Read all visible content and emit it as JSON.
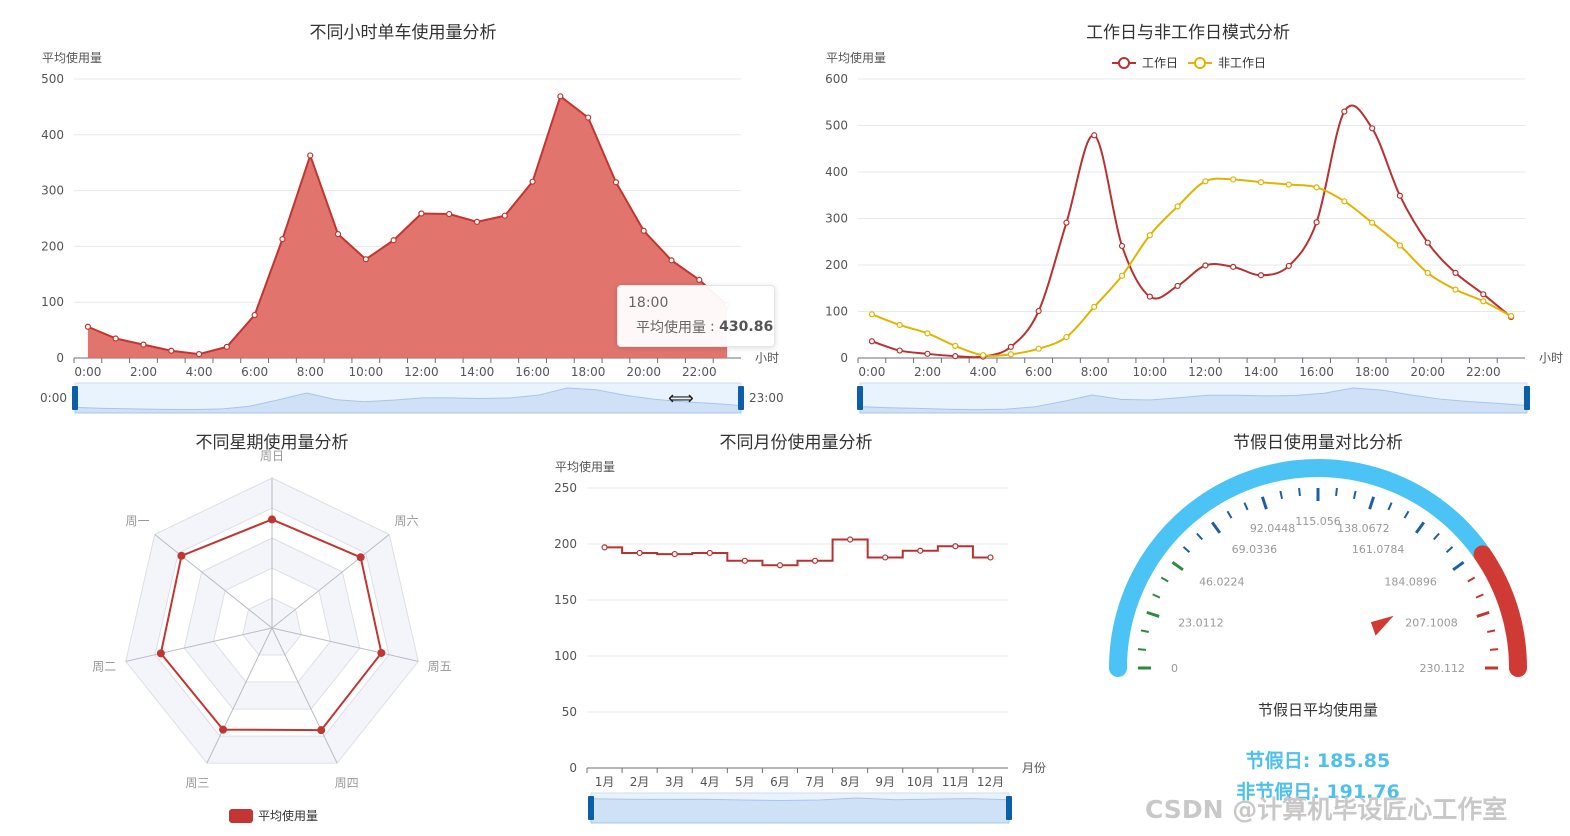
{
  "watermark": "CSDN @计算机毕设匠心工作室",
  "chart_data": [
    {
      "id": "hourly",
      "type": "area",
      "title": "不同小时单车使用量分析",
      "ylabel": "平均使用量",
      "xlabel": "小时",
      "ylim": [
        0,
        500
      ],
      "yticks": [
        0,
        100,
        200,
        300,
        400,
        500
      ],
      "x": [
        "0:00",
        "1:00",
        "2:00",
        "3:00",
        "4:00",
        "5:00",
        "6:00",
        "7:00",
        "8:00",
        "9:00",
        "10:00",
        "11:00",
        "12:00",
        "13:00",
        "14:00",
        "15:00",
        "16:00",
        "17:00",
        "18:00",
        "19:00",
        "20:00",
        "21:00",
        "22:00",
        "23:00"
      ],
      "xtick_labels": [
        "0:00",
        "2:00",
        "4:00",
        "6:00",
        "8:00",
        "10:00",
        "12:00",
        "14:00",
        "16:00",
        "18:00",
        "20:00",
        "22:00"
      ],
      "series": [
        {
          "name": "平均使用量",
          "values": [
            56,
            35,
            24,
            13,
            7,
            20,
            77,
            213,
            363,
            222,
            177,
            211,
            259,
            258,
            244,
            255,
            316,
            469,
            430.86,
            315,
            228,
            175,
            140,
            95
          ]
        }
      ],
      "color": "#c23531",
      "dataZoom": {
        "start_label": "0:00",
        "end_label": "23:00"
      },
      "tooltip": {
        "title": "18:00",
        "series_name": "平均使用量",
        "value": "430.86"
      }
    },
    {
      "id": "workday",
      "type": "line",
      "title": "工作日与非工作日模式分析",
      "ylabel": "平均使用量",
      "xlabel": "小时",
      "ylim": [
        0,
        600
      ],
      "yticks": [
        0,
        100,
        200,
        300,
        400,
        500,
        600
      ],
      "x": [
        "0:00",
        "1:00",
        "2:00",
        "3:00",
        "4:00",
        "5:00",
        "6:00",
        "7:00",
        "8:00",
        "9:00",
        "10:00",
        "11:00",
        "12:00",
        "13:00",
        "14:00",
        "15:00",
        "16:00",
        "17:00",
        "18:00",
        "19:00",
        "20:00",
        "21:00",
        "22:00",
        "23:00"
      ],
      "xtick_labels": [
        "0:00",
        "2:00",
        "4:00",
        "6:00",
        "8:00",
        "10:00",
        "12:00",
        "14:00",
        "16:00",
        "18:00",
        "20:00",
        "22:00"
      ],
      "series": [
        {
          "name": "工作日",
          "color": "#b83231",
          "values": [
            36,
            16,
            9,
            4,
            3,
            24,
            101,
            291,
            479,
            241,
            132,
            155,
            199,
            196,
            178,
            198,
            292,
            530,
            494,
            349,
            248,
            183,
            137,
            88
          ]
        },
        {
          "name": "非工作日",
          "color": "#e0b400",
          "values": [
            94,
            71,
            53,
            26,
            6,
            8,
            20,
            45,
            110,
            177,
            264,
            326,
            380,
            384,
            378,
            373,
            367,
            337,
            291,
            242,
            183,
            147,
            122,
            90
          ]
        }
      ],
      "legend_position": "top"
    },
    {
      "id": "weekday",
      "type": "radar",
      "title": "不同星期使用量分析",
      "indicators": [
        "周日",
        "周六",
        "周五",
        "周四",
        "周三",
        "周二",
        "周一"
      ],
      "series": [
        {
          "name": "平均使用量",
          "values": [
            181,
            189,
            187,
            189,
            188,
            190,
            193
          ]
        }
      ],
      "max": 250,
      "color": "#c23531",
      "legend_position": "bottom"
    },
    {
      "id": "monthly",
      "type": "line",
      "step": true,
      "title": "不同月份使用量分析",
      "ylabel": "平均使用量",
      "xlabel": "月份",
      "ylim": [
        0,
        250
      ],
      "yticks": [
        0,
        50,
        100,
        150,
        200,
        250
      ],
      "categories": [
        "1月",
        "2月",
        "3月",
        "4月",
        "5月",
        "6月",
        "7月",
        "8月",
        "9月",
        "10月",
        "11月",
        "12月"
      ],
      "series": [
        {
          "name": "平均使用量",
          "values": [
            197,
            192,
            191,
            192,
            185,
            181,
            185,
            204,
            188,
            194,
            198,
            188
          ]
        }
      ],
      "color": "#b83231"
    },
    {
      "id": "holiday",
      "type": "gauge",
      "title": "节假日使用量对比分析",
      "detail_title": "节假日平均使用量",
      "min": 0,
      "max": 230.112,
      "value": 185.85,
      "split_labels": [
        "0",
        "23.0112",
        "46.0224",
        "69.0336",
        "92.0448",
        "115.056",
        "138.0672",
        "161.0784",
        "184.0896",
        "207.1008",
        "230.112"
      ],
      "axis_colors": [
        {
          "to": 0.2,
          "color": "#2f8a3e"
        },
        {
          "to": 0.8,
          "color": "#1e5fa3"
        },
        {
          "to": 1.0,
          "color": "#c23531"
        }
      ],
      "holiday_text": "节假日: 185.85",
      "non_holiday_text": "非节假日: 191.76"
    }
  ]
}
